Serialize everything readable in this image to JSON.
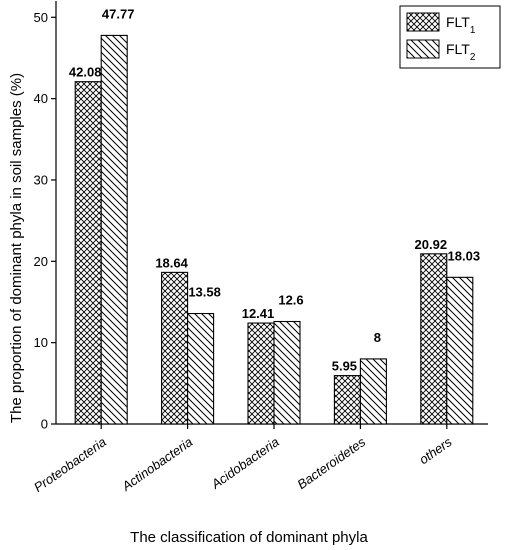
{
  "chart_data": {
    "type": "bar",
    "categories": [
      "Proteobacteria",
      "Actinobacteria",
      "Acidobacteria",
      "Bacteroidetes",
      "others"
    ],
    "series": [
      {
        "name": "FLT1",
        "name_base": "FLT",
        "name_sub": "1",
        "pattern": "crosshatch",
        "values": [
          42.08,
          18.64,
          12.41,
          5.95,
          20.92
        ]
      },
      {
        "name": "FLT2",
        "name_base": "FLT",
        "name_sub": "2",
        "pattern": "diagonal",
        "values": [
          47.77,
          13.58,
          12.6,
          8,
          18.03
        ]
      }
    ],
    "data_labels": [
      [
        "42.08",
        "18.64",
        "12.41",
        "5.95",
        "20.92"
      ],
      [
        "47.77",
        "13.58",
        "12.6",
        "8",
        "18.03"
      ]
    ],
    "xlabel": "The classification of dominant phyla",
    "ylabel": "The proportion of dominant phyla in soil samples (%)",
    "ylim": [
      0,
      52
    ],
    "yticks": [
      0,
      10,
      20,
      30,
      40,
      50
    ],
    "grid": false,
    "legend_position": "top-right",
    "colors": {
      "bar_stroke": "#000000",
      "background": "#ffffff"
    }
  }
}
